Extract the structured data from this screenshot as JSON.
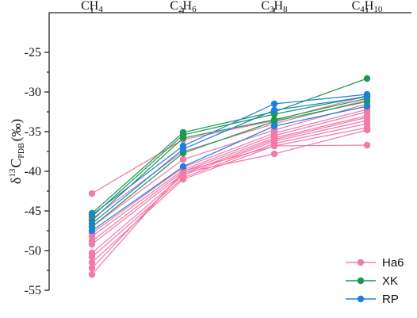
{
  "chart_data": {
    "type": "line",
    "categories": [
      "CH4",
      "C2H6",
      "C3H8",
      "C4H10"
    ],
    "category_labels": [
      {
        "base": "CH",
        "sub": "4"
      },
      {
        "base": "C",
        "sub": "2",
        "base2": "H",
        "sub2": "6"
      },
      {
        "base": "C",
        "sub": "3",
        "base2": "H",
        "sub2": "8"
      },
      {
        "base": "C",
        "sub": "4",
        "base2": "H",
        "sub2": "10"
      }
    ],
    "ylabel": {
      "main": "δ",
      "sup": "13",
      "mid": "C",
      "sub": "PDB",
      "unit": "(‰)"
    },
    "ylim": [
      -55,
      -20
    ],
    "yticks": [
      -55,
      -50,
      -45,
      -40,
      -35,
      -30,
      -25
    ],
    "legend_position": "bottom-right",
    "series": [
      {
        "name": "Ha6",
        "color": "#f07aa8",
        "lines": [
          [
            -42.8,
            -36.0,
            -33.6,
            -30.5
          ],
          [
            -46.0,
            -37.5,
            -34.0,
            -31.0
          ],
          [
            -47.0,
            -38.5,
            -34.8,
            -31.5
          ],
          [
            -47.8,
            -39.5,
            -35.2,
            -32.2
          ],
          [
            -48.2,
            -39.8,
            -35.5,
            -32.5
          ],
          [
            -48.8,
            -40.0,
            -35.8,
            -33.0
          ],
          [
            -49.2,
            -40.3,
            -36.0,
            -33.2
          ],
          [
            -50.3,
            -40.5,
            -36.2,
            -33.6
          ],
          [
            -50.8,
            -40.8,
            -36.5,
            -34.0
          ],
          [
            -51.5,
            -41.0,
            -36.8,
            -34.5
          ],
          [
            -52.2,
            -40.2,
            -37.8,
            -34.8
          ],
          [
            -53.0,
            -40.0,
            -36.8,
            -36.7
          ]
        ]
      },
      {
        "name": "XK",
        "color": "#1a9a50",
        "lines": [
          [
            -45.3,
            -35.1,
            -32.5,
            -28.3
          ],
          [
            -45.7,
            -35.4,
            -32.8,
            -30.5
          ],
          [
            -46.2,
            -35.8,
            -33.5,
            -30.8
          ],
          [
            -47.0,
            -37.7,
            -33.7,
            -31.2
          ]
        ]
      },
      {
        "name": "RP",
        "color": "#1f7fdc",
        "lines": [
          [
            -45.5,
            -36.8,
            -31.5,
            -30.3
          ],
          [
            -46.6,
            -37.2,
            -32.3,
            -30.6
          ],
          [
            -47.5,
            -39.4,
            -34.3,
            -31.8
          ]
        ]
      }
    ]
  }
}
